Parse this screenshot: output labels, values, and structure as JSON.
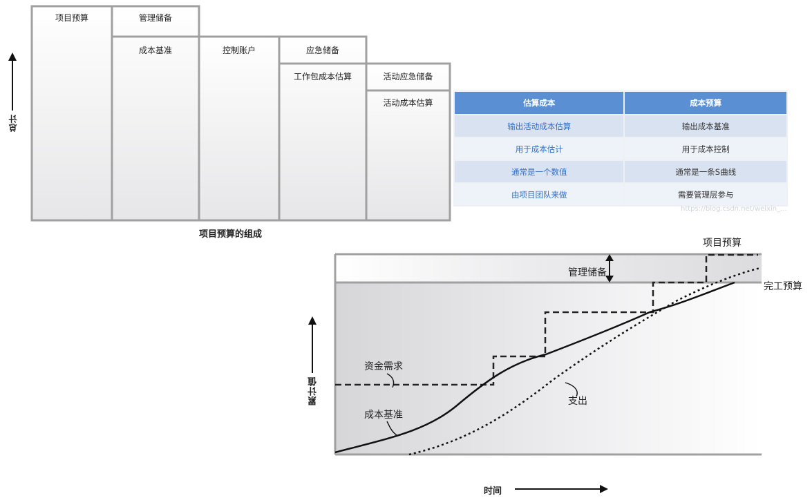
{
  "stack": {
    "col1_top": "项目预算",
    "col2_top": "管理储备",
    "col2_bottom": "成本基准",
    "col3": "控制账户",
    "col4_top": "应急储备",
    "col4_bottom": "工作包成本估算",
    "col5_top": "活动应急储备",
    "col5_bottom": "活动成本估算",
    "y_axis_label": "总计",
    "caption": "项目预算的组成"
  },
  "table": {
    "headers": [
      "估算成本",
      "成本预算"
    ],
    "rows": [
      [
        "输出活动成本估算",
        "输出成本基准"
      ],
      [
        "用于成本估计",
        "用于成本控制"
      ],
      [
        "通常是一个数值",
        "通常是一条S曲线"
      ],
      [
        "由项目团队来做",
        "需要管理层参与"
      ]
    ],
    "watermark": "https://blog.csdn.net/weixin_..."
  },
  "curve": {
    "project_budget": "项目预算",
    "bac": "完工预算",
    "mgmt_reserve": "管理储备",
    "funding": "资金需求",
    "baseline": "成本基准",
    "expenditure": "支出",
    "y_axis_label": "累计值",
    "x_axis_label": "时间"
  },
  "colors": {
    "header_blue": "#5b8fd3",
    "link_blue": "#2f6fcc",
    "frame_gray": "#a0a0a0"
  }
}
